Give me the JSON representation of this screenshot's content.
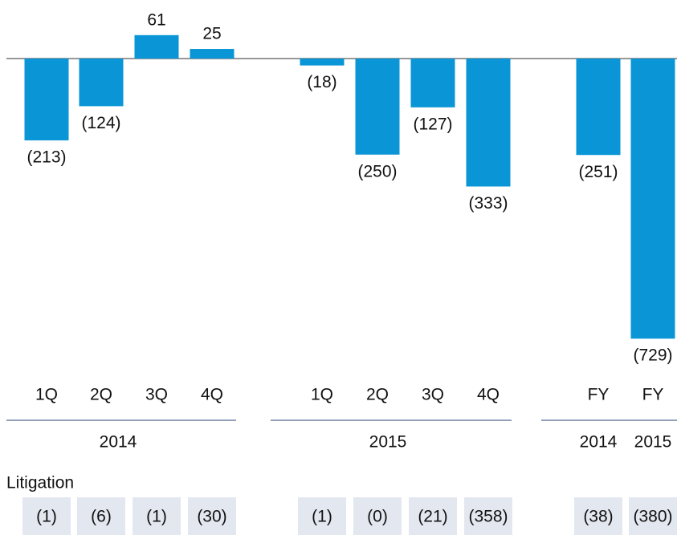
{
  "chart_data": {
    "type": "bar",
    "color": "#0a96d6",
    "groups": [
      {
        "name": "2014",
        "categories": [
          "1Q",
          "2Q",
          "3Q",
          "4Q"
        ],
        "values": [
          -213,
          -124,
          61,
          25
        ],
        "value_labels": [
          "(213)",
          "(124)",
          "61",
          "25"
        ]
      },
      {
        "name": "2015",
        "categories": [
          "1Q",
          "2Q",
          "3Q",
          "4Q"
        ],
        "values": [
          -18,
          -250,
          -127,
          -333
        ],
        "value_labels": [
          "(18)",
          "(250)",
          "(127)",
          "(333)"
        ]
      },
      {
        "names": [
          "2014",
          "2015"
        ],
        "categories": [
          "FY",
          "FY"
        ],
        "values": [
          -251,
          -729
        ],
        "value_labels": [
          "(251)",
          "(729)"
        ]
      }
    ],
    "litigation": {
      "title": "Litigation",
      "groups": [
        [
          "(1)",
          "(6)",
          "(1)",
          "(30)"
        ],
        [
          "(1)",
          "(0)",
          "(21)",
          "(358)"
        ],
        [
          "(38)",
          "(380)"
        ]
      ]
    }
  }
}
